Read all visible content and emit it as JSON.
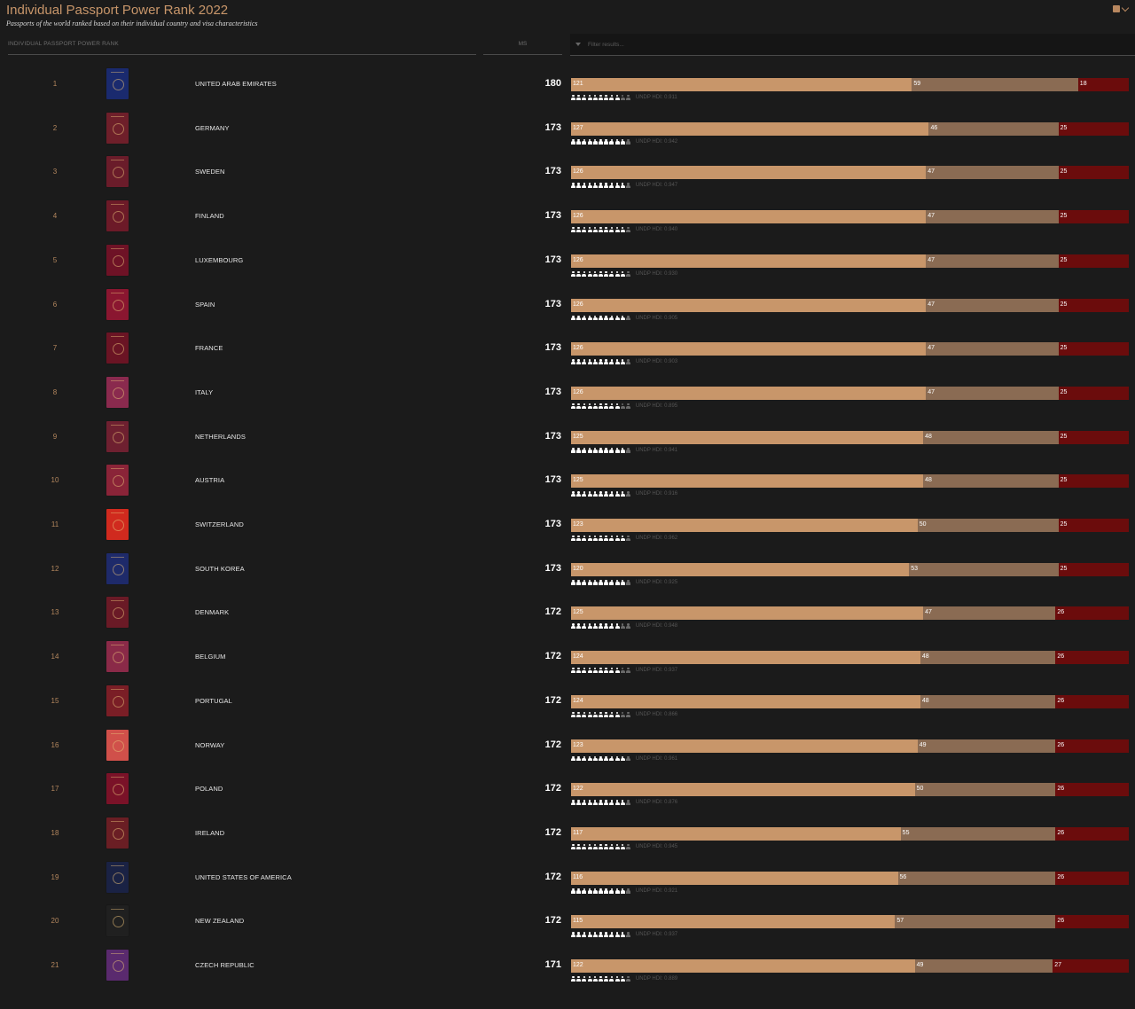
{
  "header": {
    "title": "Individual Passport Power Rank 2022",
    "subtitle": "Passports of the world ranked based on their individual country and visa characteristics",
    "menu_icon": "grid-icon",
    "col_rank": "INDIVIDUAL PASSPORT POWER RANK",
    "col_ms": "MS",
    "filter_placeholder": "Filter results..."
  },
  "colors": {
    "accent": "#c8966a",
    "visa_free": "#c8966a",
    "visa_on_arrival": "#8a6b53",
    "visa_required": "#6b0c0c",
    "background": "#1b1b1b"
  },
  "hdi_label": "UNDP HDI:",
  "rows": [
    {
      "rank": "1",
      "country": "UNITED ARAB EMIRATES",
      "ms": "180",
      "vf": 121,
      "voa": 59,
      "vr": 18,
      "hdi": "0.911",
      "people": 9,
      "cover": "#1a2a6e"
    },
    {
      "rank": "2",
      "country": "GERMANY",
      "ms": "173",
      "vf": 127,
      "voa": 46,
      "vr": 25,
      "hdi": "0.942",
      "people": 10,
      "cover": "#6e1f2a"
    },
    {
      "rank": "3",
      "country": "SWEDEN",
      "ms": "173",
      "vf": 126,
      "voa": 47,
      "vr": 25,
      "hdi": "0.947",
      "people": 10,
      "cover": "#6a1c2a"
    },
    {
      "rank": "4",
      "country": "FINLAND",
      "ms": "173",
      "vf": 126,
      "voa": 47,
      "vr": 25,
      "hdi": "0.940",
      "people": 10,
      "cover": "#6c1a28"
    },
    {
      "rank": "5",
      "country": "LUXEMBOURG",
      "ms": "173",
      "vf": 126,
      "voa": 47,
      "vr": 25,
      "hdi": "0.930",
      "people": 10,
      "cover": "#6e1226"
    },
    {
      "rank": "6",
      "country": "SPAIN",
      "ms": "173",
      "vf": 126,
      "voa": 47,
      "vr": 25,
      "hdi": "0.905",
      "people": 10,
      "cover": "#8a1630"
    },
    {
      "rank": "7",
      "country": "FRANCE",
      "ms": "173",
      "vf": 126,
      "voa": 47,
      "vr": 25,
      "hdi": "0.903",
      "people": 10,
      "cover": "#6a1424"
    },
    {
      "rank": "8",
      "country": "ITALY",
      "ms": "173",
      "vf": 126,
      "voa": 47,
      "vr": 25,
      "hdi": "0.895",
      "people": 9,
      "cover": "#8a2a4e"
    },
    {
      "rank": "9",
      "country": "NETHERLANDS",
      "ms": "173",
      "vf": 125,
      "voa": 48,
      "vr": 25,
      "hdi": "0.941",
      "people": 10,
      "cover": "#6e2030"
    },
    {
      "rank": "10",
      "country": "AUSTRIA",
      "ms": "173",
      "vf": 125,
      "voa": 48,
      "vr": 25,
      "hdi": "0.916",
      "people": 10,
      "cover": "#8a2438"
    },
    {
      "rank": "11",
      "country": "SWITZERLAND",
      "ms": "173",
      "vf": 123,
      "voa": 50,
      "vr": 25,
      "hdi": "0.962",
      "people": 10,
      "cover": "#d02a1e"
    },
    {
      "rank": "12",
      "country": "SOUTH KOREA",
      "ms": "173",
      "vf": 120,
      "voa": 53,
      "vr": 25,
      "hdi": "0.925",
      "people": 10,
      "cover": "#1e2a6a"
    },
    {
      "rank": "13",
      "country": "DENMARK",
      "ms": "172",
      "vf": 125,
      "voa": 47,
      "vr": 26,
      "hdi": "0.948",
      "people": 9,
      "cover": "#6a1a26"
    },
    {
      "rank": "14",
      "country": "BELGIUM",
      "ms": "172",
      "vf": 124,
      "voa": 48,
      "vr": 26,
      "hdi": "0.937",
      "people": 9,
      "cover": "#8a2a48"
    },
    {
      "rank": "15",
      "country": "PORTUGAL",
      "ms": "172",
      "vf": 124,
      "voa": 48,
      "vr": 26,
      "hdi": "0.866",
      "people": 9,
      "cover": "#7a1e26"
    },
    {
      "rank": "16",
      "country": "NORWAY",
      "ms": "172",
      "vf": 123,
      "voa": 49,
      "vr": 26,
      "hdi": "0.961",
      "people": 10,
      "cover": "#d0504a"
    },
    {
      "rank": "17",
      "country": "POLAND",
      "ms": "172",
      "vf": 122,
      "voa": 50,
      "vr": 26,
      "hdi": "0.876",
      "people": 10,
      "cover": "#7a1228"
    },
    {
      "rank": "18",
      "country": "IRELAND",
      "ms": "172",
      "vf": 117,
      "voa": 55,
      "vr": 26,
      "hdi": "0.945",
      "people": 10,
      "cover": "#6a1e24"
    },
    {
      "rank": "19",
      "country": "UNITED STATES OF AMERICA",
      "ms": "172",
      "vf": 116,
      "voa": 56,
      "vr": 26,
      "hdi": "0.921",
      "people": 10,
      "cover": "#1a2244"
    },
    {
      "rank": "20",
      "country": "NEW ZEALAND",
      "ms": "172",
      "vf": 115,
      "voa": 57,
      "vr": 26,
      "hdi": "0.937",
      "people": 10,
      "cover": "#202020"
    },
    {
      "rank": "21",
      "country": "CZECH REPUBLIC",
      "ms": "171",
      "vf": 122,
      "voa": 49,
      "vr": 27,
      "hdi": "0.889",
      "people": 10,
      "cover": "#5a2a6e"
    }
  ]
}
